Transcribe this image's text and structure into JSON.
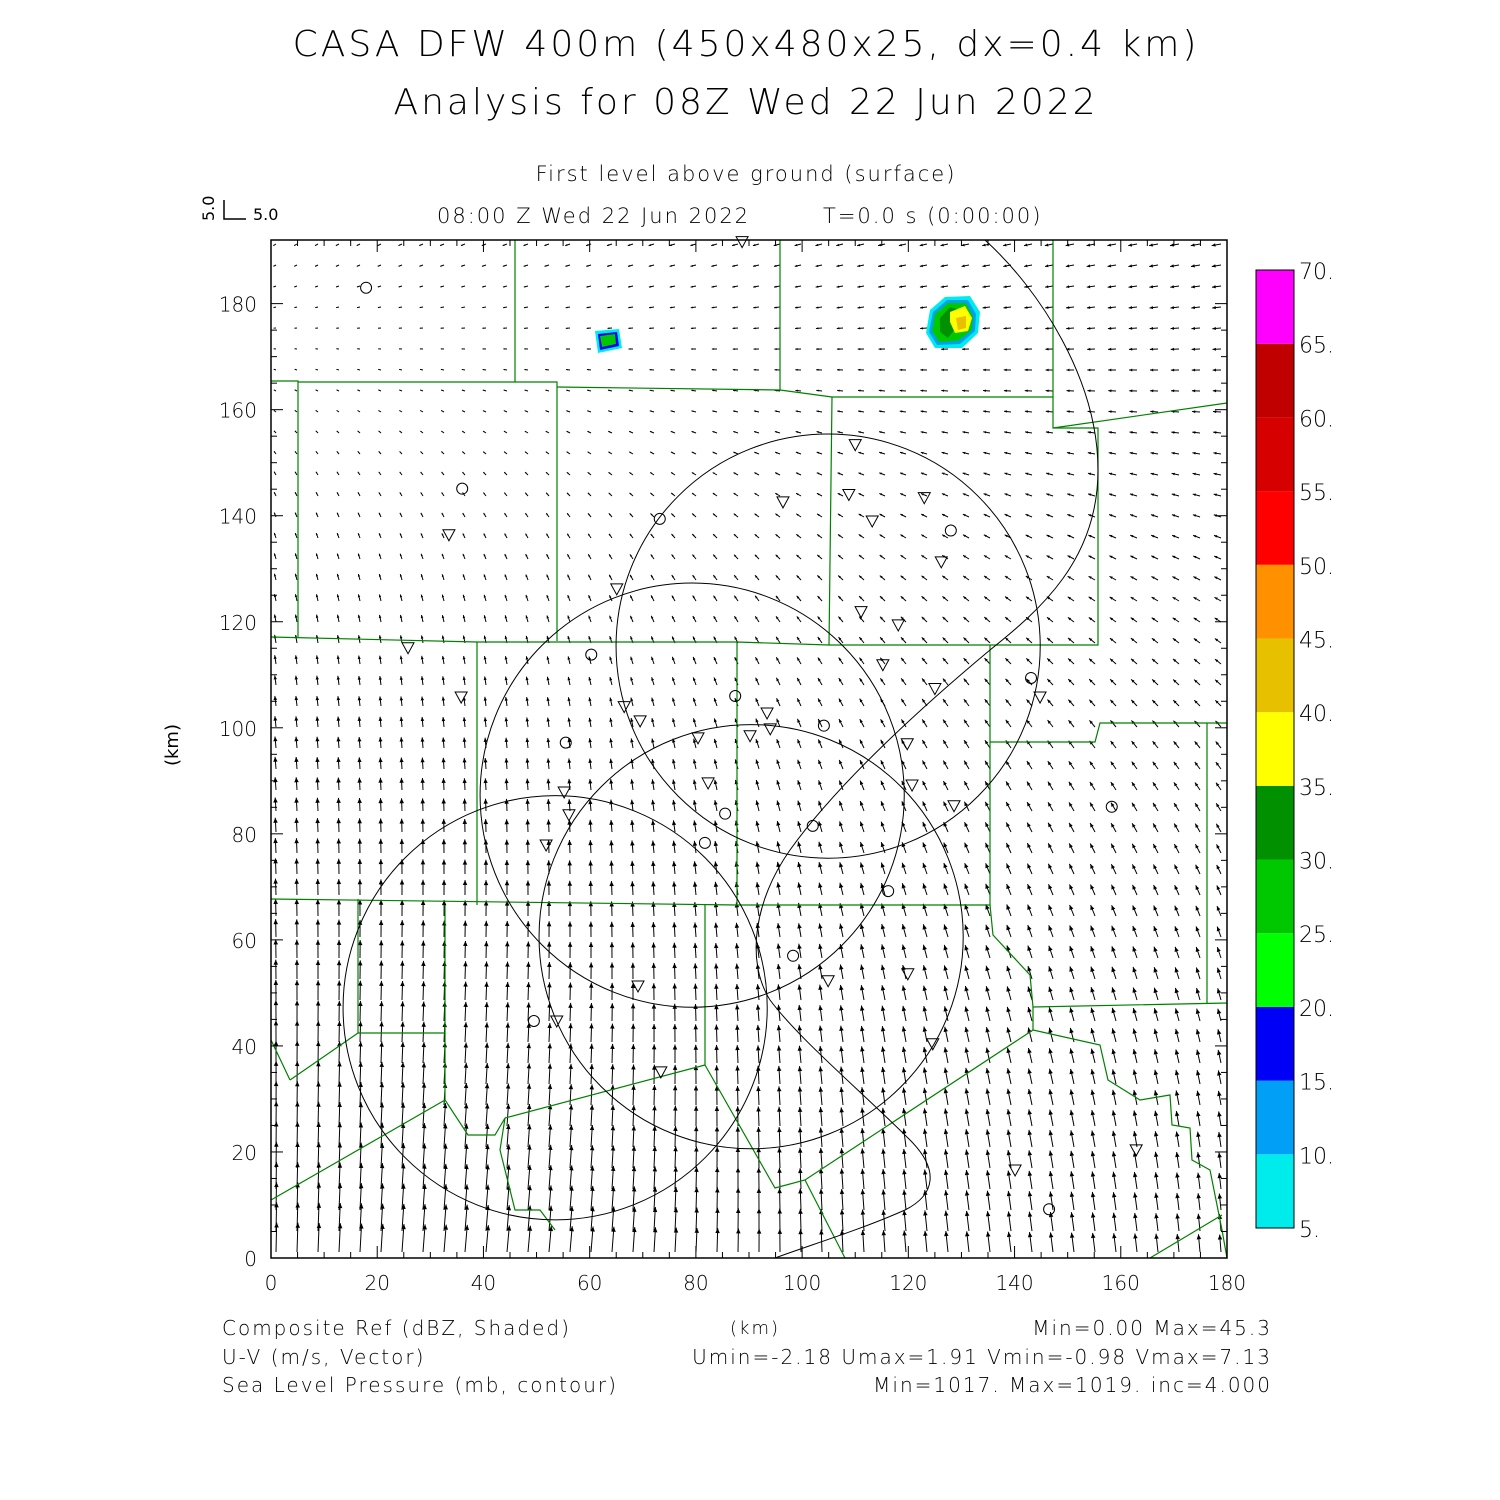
{
  "header": {
    "title": "CASA DFW 400m (450x480x25, dx=0.4 km)",
    "subtitle": "Analysis for 08Z Wed 22 Jun 2022",
    "level": "First level above ground (surface)",
    "valid_time": "08:00 Z Wed 22 Jun 2022",
    "forecast_time": "T=0.0 s (0:00:00)",
    "ref_vector_u": "5.0",
    "ref_vector_v": "5.0"
  },
  "footer": {
    "field1_label": "Composite Ref (dBZ, Shaded)",
    "field1_stats": "Min=0.00 Max=45.3",
    "field2_label": "U-V (m/s, Vector)",
    "field2_stats": "Umin=-2.18 Umax=1.91 Vmin=-0.98 Vmax=7.13",
    "field3_label": "Sea Level Pressure (mb, contour)",
    "field3_stats": "Min=1017. Max=1019. inc=4.000",
    "xunit": "(km)"
  },
  "chart_data": {
    "type": "heatmap",
    "title": "CASA DFW 400m (450x480x25, dx=0.4 km)",
    "xlabel": "(km)",
    "ylabel": "(km)",
    "xlim": [
      0,
      180
    ],
    "ylim": [
      0,
      192
    ],
    "xticks": [
      "0",
      "20",
      "40",
      "60",
      "80",
      "100",
      "120",
      "140",
      "160",
      "180"
    ],
    "yticks": [
      "0",
      "20",
      "40",
      "60",
      "80",
      "100",
      "120",
      "140",
      "160",
      "180"
    ],
    "colorbar": {
      "levels": [
        "5.",
        "10.",
        "15.",
        "20.",
        "25.",
        "30.",
        "35.",
        "40.",
        "45.",
        "50.",
        "55.",
        "60.",
        "65.",
        "70."
      ],
      "colors": [
        "#00ecec",
        "#01a0f6",
        "#0000f6",
        "#00ff00",
        "#00c800",
        "#009000",
        "#ffff00",
        "#e7c000",
        "#ff9000",
        "#ff0000",
        "#d60000",
        "#c00000",
        "#ff00ff"
      ]
    },
    "reflectivity_cells": [
      {
        "x_km": 63,
        "y_km": 173,
        "max_dbz": 25
      },
      {
        "x_km": 129,
        "y_km": 176,
        "max_dbz": 45.3
      }
    ],
    "range_rings_km": [
      {
        "x": 104.9,
        "y": 115.4,
        "r": 40
      },
      {
        "x": 79.3,
        "y": 87.3,
        "r": 40
      },
      {
        "x": 90.4,
        "y": 60.6,
        "r": 40
      },
      {
        "x": 53.5,
        "y": 47.2,
        "r": 40
      }
    ],
    "stations_circle": [
      [
        17.9,
        183
      ],
      [
        36,
        145.1
      ],
      [
        73.2,
        139.4
      ],
      [
        128,
        137.2
      ],
      [
        60.3,
        113.8
      ],
      [
        87.4,
        106
      ],
      [
        55.5,
        97.2
      ],
      [
        104.1,
        100.4
      ],
      [
        143.1,
        109.4
      ],
      [
        85.5,
        83.8
      ],
      [
        102,
        81.5
      ],
      [
        81.7,
        78.3
      ],
      [
        158.3,
        85.1
      ],
      [
        116.2,
        69.2
      ],
      [
        98.3,
        57
      ],
      [
        49.5,
        44.7
      ],
      [
        146.5,
        9.2
      ]
    ],
    "stations_triangle": [
      [
        88.7,
        191.7
      ],
      [
        110,
        153.4
      ],
      [
        96.4,
        142.6
      ],
      [
        108.8,
        144
      ],
      [
        123,
        143.4
      ],
      [
        113.2,
        139
      ],
      [
        33.5,
        136.4
      ],
      [
        126.2,
        131.3
      ],
      [
        65.1,
        126.2
      ],
      [
        111.1,
        121.9
      ],
      [
        118.1,
        119.4
      ],
      [
        25.8,
        115.1
      ],
      [
        115.2,
        111.9
      ],
      [
        125,
        107.4
      ],
      [
        144.8,
        105.8
      ],
      [
        35.8,
        105.8
      ],
      [
        66.5,
        104
      ],
      [
        69.5,
        101.3
      ],
      [
        93.4,
        102.8
      ],
      [
        94,
        99.8
      ],
      [
        90.2,
        98.5
      ],
      [
        80.4,
        98.1
      ],
      [
        119.8,
        97
      ],
      [
        82.3,
        89.6
      ],
      [
        120.7,
        89.2
      ],
      [
        55.2,
        87.9
      ],
      [
        128.6,
        85.3
      ],
      [
        56.1,
        83.6
      ],
      [
        51.8,
        77.9
      ],
      [
        69.1,
        51.3
      ],
      [
        104.9,
        52.3
      ],
      [
        119.9,
        53.6
      ],
      [
        53.8,
        44.7
      ],
      [
        124.6,
        40.4
      ],
      [
        73.4,
        35.1
      ],
      [
        162.9,
        20.4
      ],
      [
        140.1,
        16.6
      ]
    ]
  }
}
